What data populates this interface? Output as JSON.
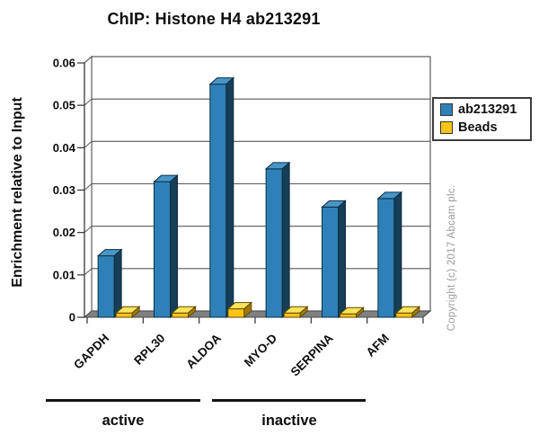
{
  "title": "ChIP: Histone H4 ab213291",
  "y_axis_title": "Enrichment relative to Input",
  "copyright": "Copyright (c) 2017 Abcam plc.",
  "legend": {
    "items": [
      {
        "label": "ab213291"
      },
      {
        "label": "Beads"
      }
    ]
  },
  "groups": [
    {
      "label": "active",
      "categories": [
        "GAPDH",
        "RPL30",
        "ALDOA"
      ]
    },
    {
      "label": "inactive",
      "categories": [
        "MYO-D",
        "SERPINA",
        "AFM"
      ]
    }
  ],
  "chart_data": {
    "type": "bar",
    "style": "3d-clustered",
    "title": "ChIP: Histone H4 ab213291",
    "xlabel": "",
    "ylabel": "Enrichment relative to Input",
    "categories": [
      "GAPDH",
      "RPL30",
      "ALDOA",
      "MYO-D",
      "SERPINA",
      "AFM"
    ],
    "series": [
      {
        "name": "ab213291",
        "values": [
          0.0145,
          0.032,
          0.055,
          0.035,
          0.026,
          0.028
        ],
        "color": {
          "front": "#2E81B8",
          "top": "#4796C8",
          "side": "#173E57",
          "outline": "#0F2D42"
        }
      },
      {
        "name": "Beads",
        "values": [
          0.001,
          0.001,
          0.002,
          0.001,
          0.0008,
          0.001
        ],
        "color": {
          "front": "#FFC414",
          "top": "#FFE25C",
          "side": "#A37A00",
          "outline": "#5C4A00"
        }
      }
    ],
    "ylim": [
      0,
      0.06
    ],
    "ytick_step": 0.01,
    "ytick_labels": [
      "0",
      "0.01",
      "0.02",
      "0.03",
      "0.04",
      "0.05",
      "0.06"
    ],
    "grid": true,
    "legend_position": "right",
    "wall_color": "#ffffff",
    "floor_color": "#808080",
    "gridline_color": "#595959",
    "axis_color": "#404040"
  }
}
